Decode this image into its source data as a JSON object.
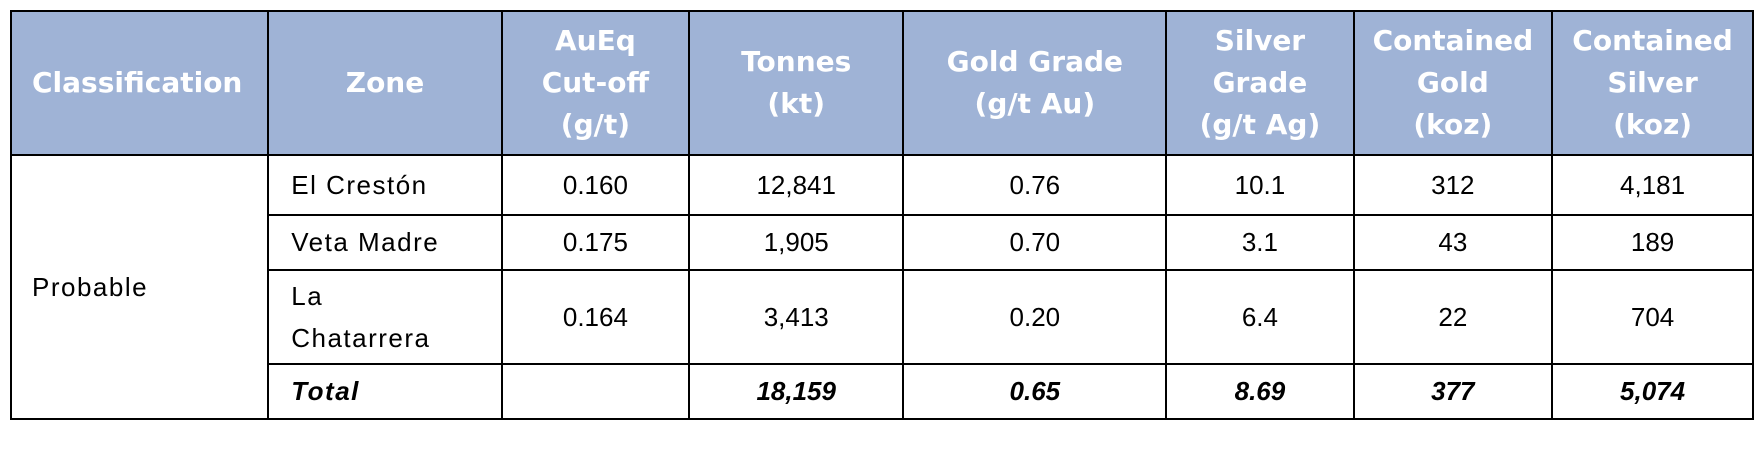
{
  "headers": {
    "classification": "Classification",
    "zone": "Zone",
    "cutoff": [
      "AuEq",
      "Cut-off",
      "(g/t)"
    ],
    "tonnes": [
      "Tonnes",
      "(kt)"
    ],
    "gold_grade": [
      "Gold Grade",
      "(g/t Au)"
    ],
    "silver_grade": [
      "Silver",
      "Grade",
      "(g/t Ag)"
    ],
    "contained_gold": [
      "Contained",
      "Gold",
      "(koz)"
    ],
    "contained_silver": [
      "Contained",
      "Silver",
      "(koz)"
    ]
  },
  "classification": "Probable",
  "rows": [
    {
      "zone": [
        "El Crestón"
      ],
      "cutoff": "0.160",
      "tonnes": "12,841",
      "gold_grade": "0.76",
      "silver_grade": "10.1",
      "contained_gold": "312",
      "contained_silver": "4,181"
    },
    {
      "zone": [
        "Veta Madre"
      ],
      "cutoff": "0.175",
      "tonnes": "1,905",
      "gold_grade": "0.70",
      "silver_grade": "3.1",
      "contained_gold": "43",
      "contained_silver": "189"
    },
    {
      "zone": [
        "La",
        "Chatarrera"
      ],
      "cutoff": "0.164",
      "tonnes": "3,413",
      "gold_grade": "0.20",
      "silver_grade": "6.4",
      "contained_gold": "22",
      "contained_silver": "704"
    }
  ],
  "total": {
    "label": "Total",
    "cutoff": "",
    "tonnes": "18,159",
    "gold_grade": "0.65",
    "silver_grade": "8.69",
    "contained_gold": "377",
    "contained_silver": "5,074"
  },
  "colors": {
    "header_bg": "#9fb3d6",
    "header_text": "#ffffff",
    "border": "#000000"
  }
}
